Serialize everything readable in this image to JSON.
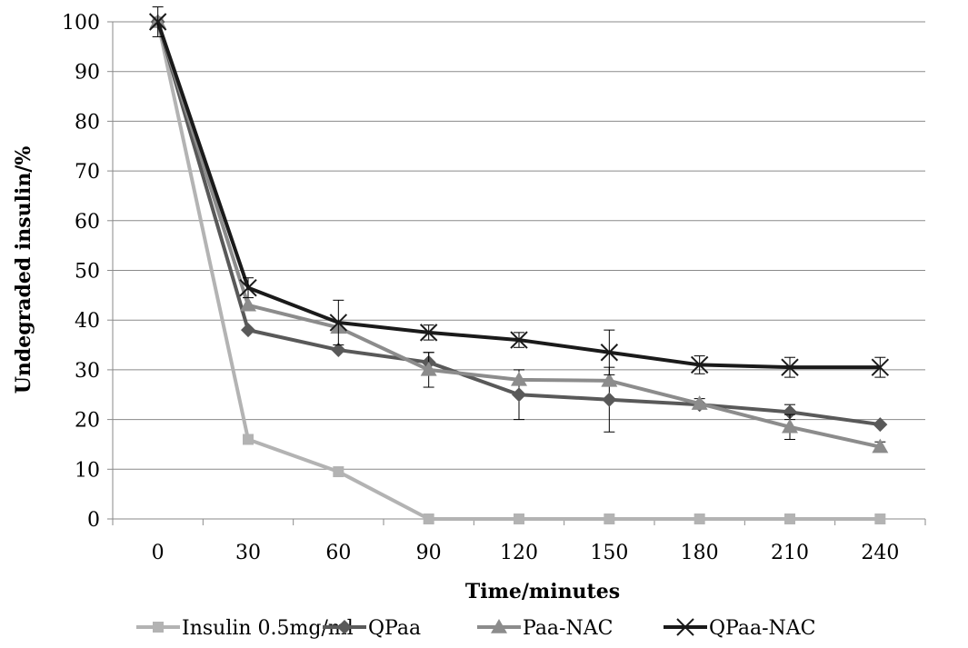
{
  "chart_data": {
    "type": "line",
    "title": "",
    "xlabel": "Time/minutes",
    "ylabel": "Undegraded insulin/%",
    "x": [
      0,
      30,
      60,
      90,
      120,
      150,
      180,
      210,
      240
    ],
    "ylim": [
      0,
      100
    ],
    "yticks": [
      0,
      10,
      20,
      30,
      40,
      50,
      60,
      70,
      80,
      90,
      100
    ],
    "grid": true,
    "legend_position": "bottom",
    "series": [
      {
        "name": "Insulin 0.5mg/ml",
        "color": "#b3b3b3",
        "marker": "square",
        "values": [
          100,
          16,
          9.5,
          0,
          0,
          0,
          0,
          0,
          0
        ],
        "error": [
          0,
          0,
          0,
          0,
          0,
          0,
          0,
          0,
          0
        ]
      },
      {
        "name": "QPaa",
        "color": "#595959",
        "marker": "diamond",
        "values": [
          100,
          38,
          34,
          31.5,
          25,
          24,
          23,
          21.5,
          19
        ],
        "error": [
          0,
          0,
          0,
          2,
          5,
          6.5,
          0,
          1.5,
          0
        ]
      },
      {
        "name": "Paa-NAC",
        "color": "#8c8c8c",
        "marker": "triangle",
        "values": [
          100,
          43,
          38.5,
          30,
          28,
          27.8,
          23.2,
          18.5,
          14.5
        ],
        "error": [
          0,
          0,
          0,
          3.5,
          0,
          0,
          1,
          2.5,
          1
        ]
      },
      {
        "name": "QPaa-NAC",
        "color": "#1a1a1a",
        "marker": "x",
        "values": [
          100,
          46.5,
          39.5,
          37.5,
          36,
          33.5,
          31,
          30.5,
          30.5
        ],
        "error": [
          3,
          2,
          4.5,
          1.5,
          1.5,
          4.5,
          1.8,
          2,
          2
        ]
      }
    ]
  }
}
